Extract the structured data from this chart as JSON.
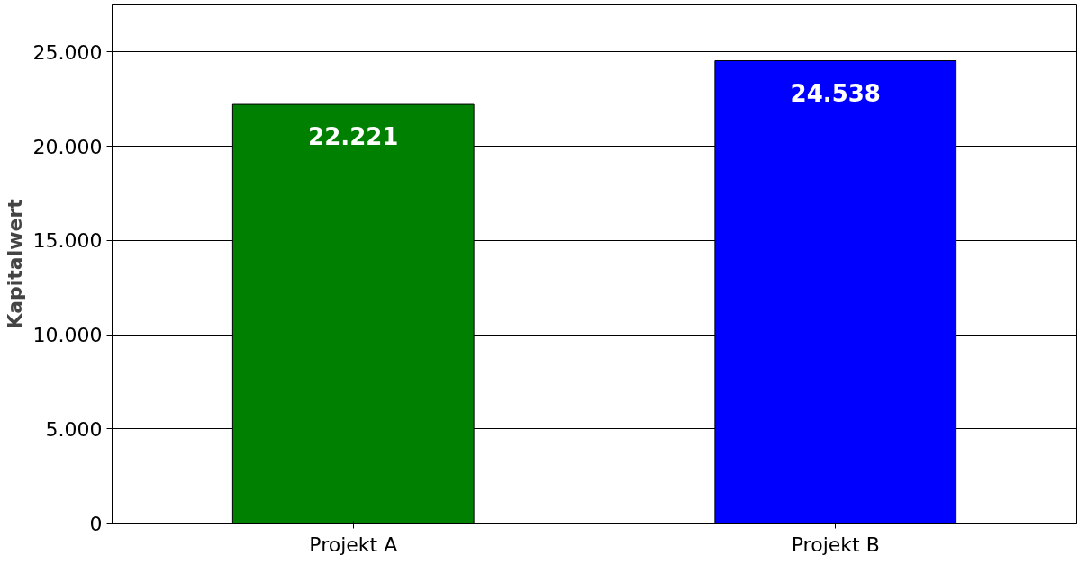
{
  "chart_data": {
    "type": "bar",
    "ylabel": "Kapitalwert",
    "categories": [
      "Projekt A",
      "Projekt B"
    ],
    "values": [
      22221,
      24538
    ],
    "colors": [
      "#008000",
      "#0000ff"
    ],
    "value_labels": [
      "22.221",
      "24.538"
    ],
    "ylim": [
      0,
      27500
    ],
    "yticks": [
      0,
      {
        "value": 5000,
        "label": "5.000"
      },
      {
        "value": 10000,
        "label": "10.000"
      },
      {
        "value": 15000,
        "label": "15.000"
      },
      {
        "value": 20000,
        "label": "20.000"
      },
      {
        "value": 25000,
        "label": "25.000"
      }
    ],
    "grid": "y"
  }
}
